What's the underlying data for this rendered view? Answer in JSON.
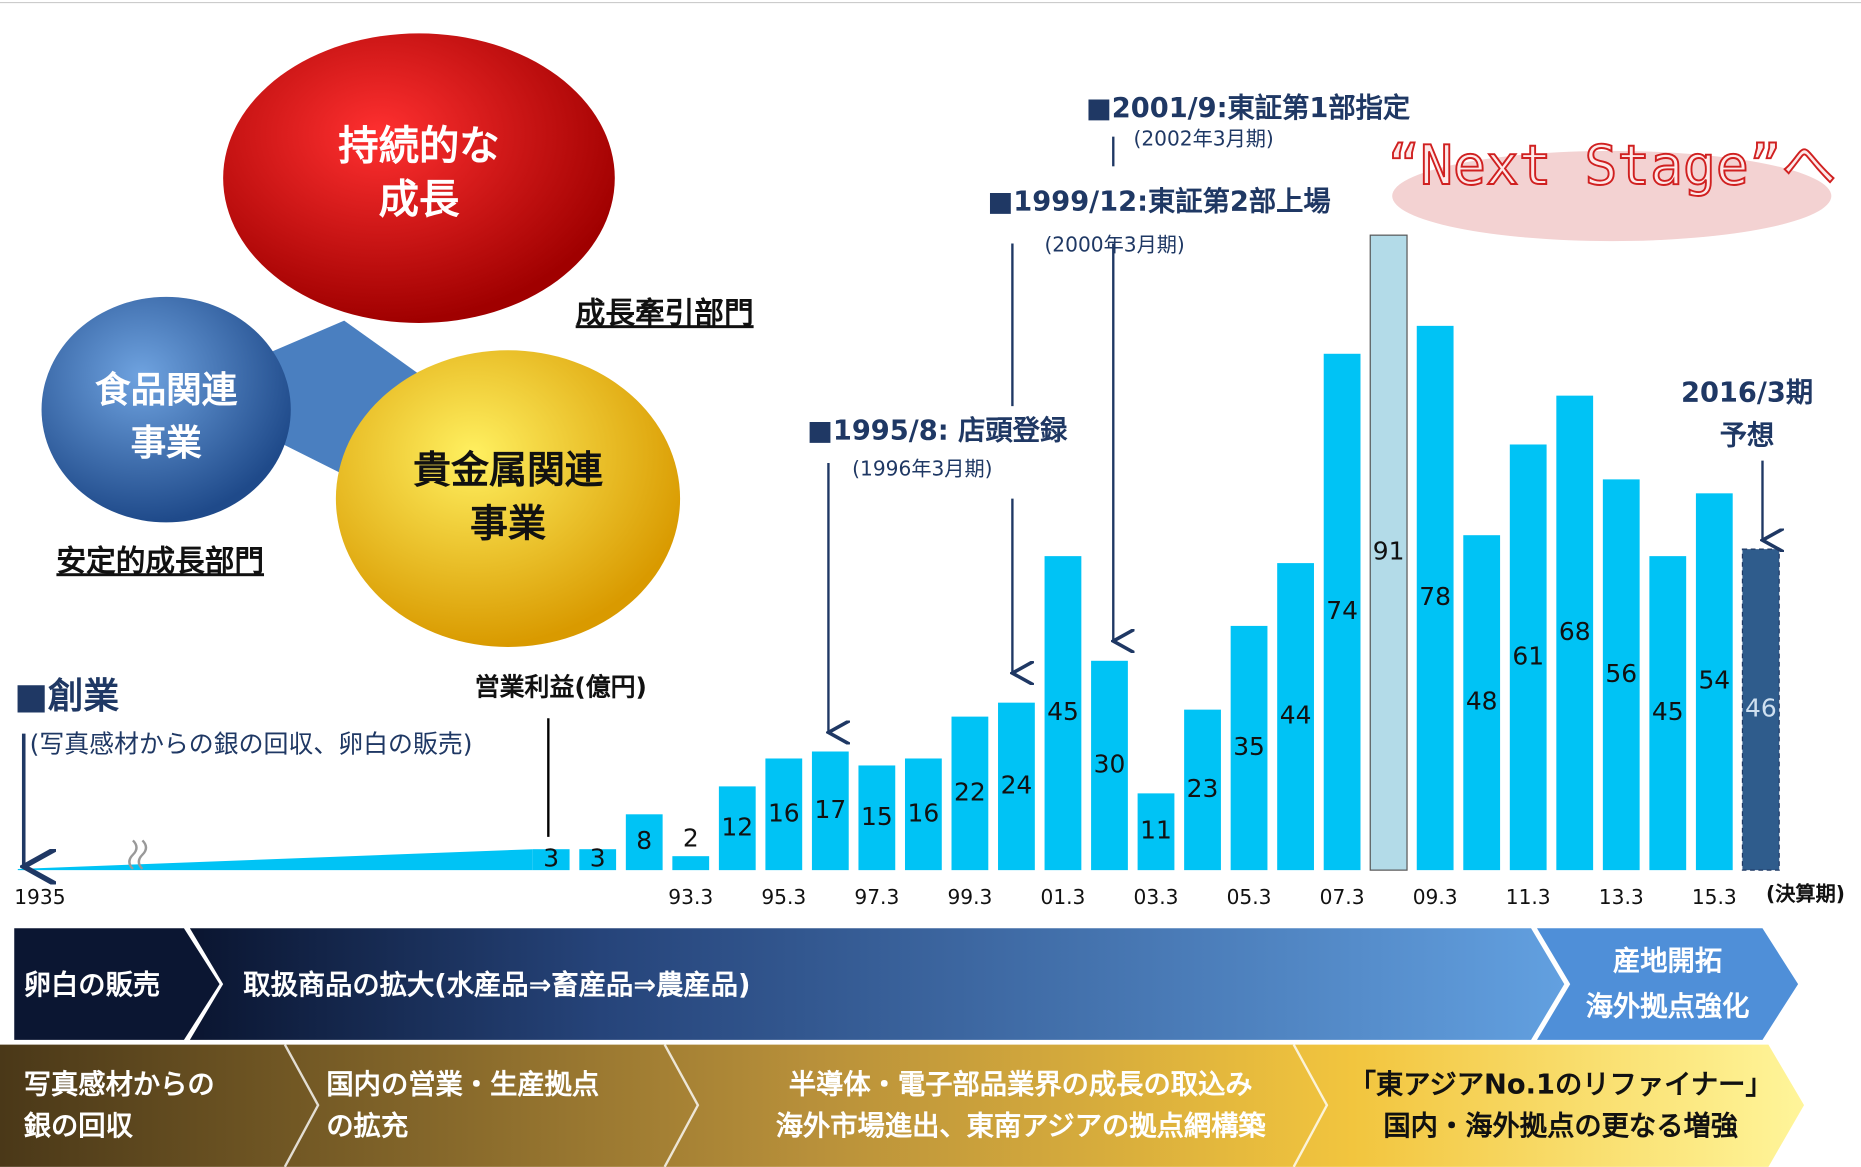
{
  "chart_data": {
    "type": "bar",
    "y_label": "営業利益(億円)",
    "start_label": "1935",
    "x_unit": "(決算期)",
    "categories": [
      null,
      null,
      null,
      "93.3",
      null,
      "95.3",
      null,
      "97.3",
      null,
      "99.3",
      null,
      "01.3",
      null,
      "03.3",
      null,
      "05.3",
      null,
      "07.3",
      null,
      "09.3",
      null,
      "11.3",
      null,
      "13.3",
      null,
      "15.3",
      null
    ],
    "values": [
      3,
      3,
      8,
      2,
      12,
      16,
      17,
      15,
      16,
      22,
      24,
      45,
      30,
      11,
      23,
      35,
      44,
      74,
      91,
      78,
      48,
      61,
      68,
      56,
      45,
      54,
      46
    ],
    "colors": [
      "#00c3f5",
      "#00c3f5",
      "#00c3f5",
      "#00c3f5",
      "#00c3f5",
      "#00c3f5",
      "#00c3f5",
      "#00c3f5",
      "#00c3f5",
      "#00c3f5",
      "#00c3f5",
      "#00c3f5",
      "#00c3f5",
      "#00c3f5",
      "#00c3f5",
      "#00c3f5",
      "#00c3f5",
      "#00c3f5",
      "#b3dbe8",
      "#00c3f5",
      "#00c3f5",
      "#00c3f5",
      "#00c3f5",
      "#00c3f5",
      "#00c3f5",
      "#00c3f5",
      "#2f5c8c"
    ]
  },
  "milestones": [
    {
      "title": "■創業",
      "sub": "(写真感材からの銀の回収、卵白の販売)"
    },
    {
      "title": "■1995/8: 店頭登録",
      "sub": "(1996年3月期)"
    },
    {
      "title": "■1999/12:東証第2部上場",
      "sub": "(2000年3月期)"
    },
    {
      "title": "■2001/9:東証第1部指定",
      "sub": "(2002年3月期)"
    },
    {
      "title": "2016/3期",
      "sub": "予想"
    }
  ],
  "next_stage": "“Next Stage”へ",
  "circles": [
    [
      "持続的な",
      "成長"
    ],
    [
      "食品関連",
      "事業"
    ],
    [
      "貴金属関連",
      "事業"
    ]
  ],
  "divisions": [
    "成長牽引部門",
    "安定的成長部門"
  ],
  "band_food": [
    [
      "卵白の販売"
    ],
    [
      "取扱商品の拡大(水産品⇒畜産品⇒農産品)"
    ],
    [
      "産地開拓",
      "海外拠点強化"
    ]
  ],
  "band_metal": [
    [
      "写真感材からの",
      "銀の回収"
    ],
    [
      "国内の営業・生産拠点",
      "の拡充"
    ],
    [
      "半導体・電子部品業界の成長の取込み",
      "海外市場進出、東南アジアの拠点網構築"
    ],
    [
      "「東アジアNo.1のリファイナー」",
      "国内・海外拠点の更なる増強"
    ]
  ]
}
